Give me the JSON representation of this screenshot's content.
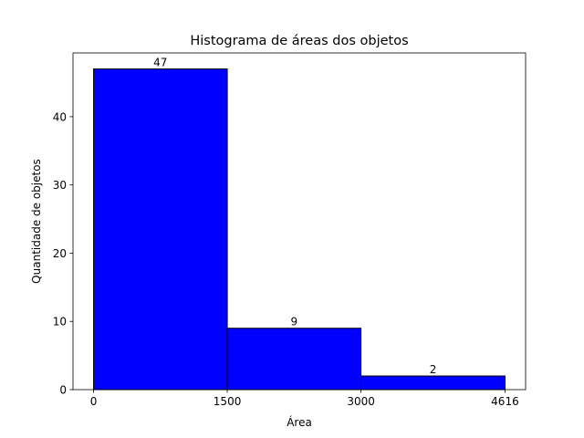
{
  "chart_data": {
    "type": "bar",
    "title": "Histograma de áreas dos objetos",
    "xlabel": "Área",
    "ylabel": "Quantidade de objetos",
    "bins": [
      {
        "start": 0,
        "end": 1500,
        "value": 47,
        "label": "47"
      },
      {
        "start": 1500,
        "end": 3000,
        "value": 9,
        "label": "9"
      },
      {
        "start": 3000,
        "end": 4616,
        "value": 2,
        "label": "2"
      }
    ],
    "x_ticks": [
      {
        "value": 0,
        "label": "0"
      },
      {
        "value": 1500,
        "label": "1500"
      },
      {
        "value": 3000,
        "label": "3000"
      },
      {
        "value": 4616,
        "label": "4616"
      }
    ],
    "y_ticks": [
      {
        "value": 0,
        "label": "0"
      },
      {
        "value": 10,
        "label": "10"
      },
      {
        "value": 20,
        "label": "20"
      },
      {
        "value": 30,
        "label": "30"
      },
      {
        "value": 40,
        "label": "40"
      }
    ],
    "xlim": [
      -230.8,
      4846.8
    ],
    "ylim": [
      0,
      49.35
    ],
    "grid": false,
    "colors": {
      "bar_fill": "#0000ff",
      "bar_edge": "#000000"
    }
  }
}
